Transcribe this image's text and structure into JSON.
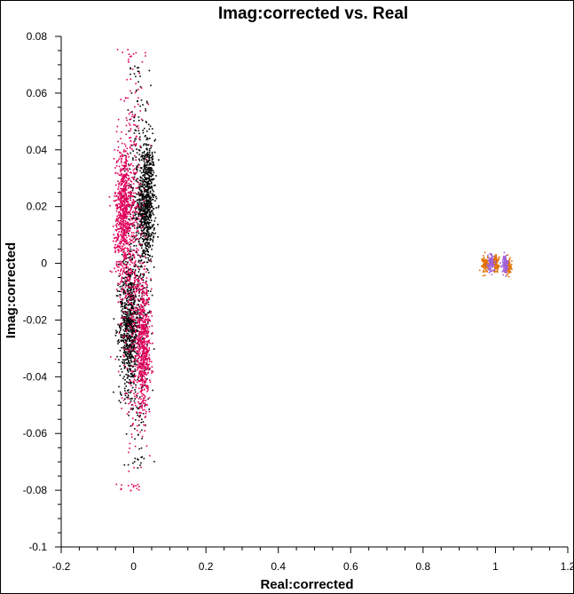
{
  "chart_data": {
    "type": "scatter",
    "title": "Imag:corrected vs. Real",
    "xlabel": "Real:corrected",
    "ylabel": "Imag:corrected",
    "xlim": [
      -0.2,
      1.2
    ],
    "ylim": [
      -0.1,
      0.08
    ],
    "x_ticks": [
      -0.2,
      0,
      0.2,
      0.4,
      0.6,
      0.8,
      1,
      1.2
    ],
    "x_tick_labels": [
      "-0.2",
      "0",
      "0.2",
      "0.4",
      "0.6",
      "0.8",
      "1",
      "1.2"
    ],
    "y_ticks": [
      0.08,
      0.06,
      0.04,
      0.02,
      0,
      -0.02,
      -0.04,
      -0.06,
      -0.08,
      -0.1
    ],
    "y_tick_labels": [
      "0.08",
      "0.06",
      "0.04",
      "0.02",
      "0",
      "-0.02",
      "-0.04",
      "-0.06",
      "-0.08",
      "-0.1"
    ],
    "grid": false,
    "legend": "none",
    "series": [
      {
        "color": "#000000",
        "clusters": [
          {
            "x_center": 0.035,
            "x_spread": 0.018,
            "y_center": 0.022,
            "y_spread": 0.011,
            "count": 700
          },
          {
            "x_center": -0.015,
            "x_spread": 0.022,
            "y_center": -0.022,
            "y_spread": 0.011,
            "count": 650
          },
          {
            "x_center": 0.01,
            "x_spread": 0.03,
            "y_center": 0.0,
            "y_spread": 0.035,
            "count": 500
          }
        ],
        "y_range": [
          -0.072,
          0.07
        ]
      },
      {
        "color": "#e0005a",
        "clusters": [
          {
            "x_center": -0.03,
            "x_spread": 0.02,
            "y_center": 0.018,
            "y_spread": 0.012,
            "count": 650
          },
          {
            "x_center": 0.025,
            "x_spread": 0.018,
            "y_center": -0.03,
            "y_spread": 0.011,
            "count": 600
          },
          {
            "x_center": -0.005,
            "x_spread": 0.03,
            "y_center": 0.0,
            "y_spread": 0.035,
            "count": 500
          }
        ],
        "y_range": [
          -0.08,
          0.076
        ]
      },
      {
        "color": "#e07000",
        "clusters": [
          {
            "x_center": 0.97,
            "x_spread": 0.007,
            "y_center": 0.0,
            "y_spread": 0.0015,
            "count": 90
          },
          {
            "x_center": 1.0,
            "x_spread": 0.007,
            "y_center": 0.0,
            "y_spread": 0.0015,
            "count": 90
          },
          {
            "x_center": 1.035,
            "x_spread": 0.007,
            "y_center": -0.001,
            "y_spread": 0.0015,
            "count": 70
          }
        ],
        "y_range": [
          -0.006,
          0.005
        ]
      },
      {
        "color": "#a060d8",
        "clusters": [
          {
            "x_center": 0.985,
            "x_spread": 0.007,
            "y_center": 0.0,
            "y_spread": 0.0015,
            "count": 90
          },
          {
            "x_center": 1.025,
            "x_spread": 0.007,
            "y_center": 0.0,
            "y_spread": 0.0015,
            "count": 110
          }
        ],
        "y_range": [
          -0.005,
          0.005
        ]
      }
    ]
  }
}
